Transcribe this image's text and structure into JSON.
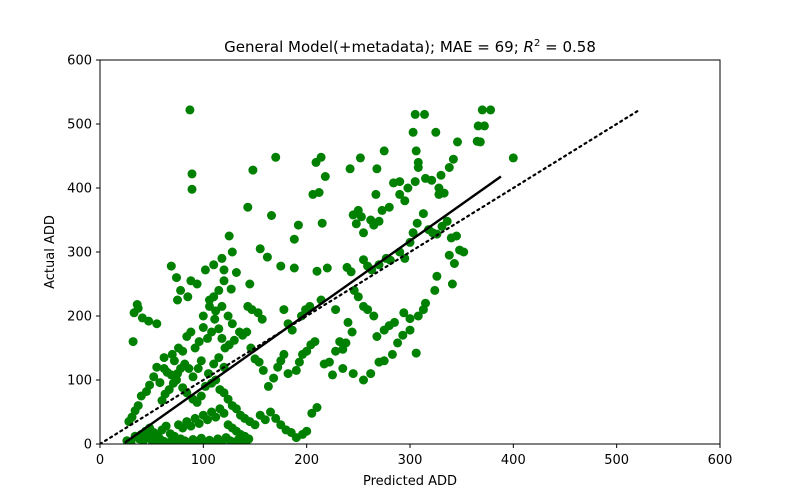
{
  "chart_data": {
    "type": "scatter",
    "title_main": "General Model(+metadata); MAE = 69; ",
    "title_r": "R",
    "title_sup": "2",
    "title_tail": " = 0.58",
    "xlabel": "Predicted ADD",
    "ylabel": "Actual ADD",
    "xlim": [
      0,
      600
    ],
    "ylim": [
      0,
      600
    ],
    "xticks": [
      "0",
      "100",
      "200",
      "300",
      "400",
      "500",
      "600"
    ],
    "yticks": [
      "0",
      "100",
      "200",
      "300",
      "400",
      "500",
      "600"
    ],
    "grid": false,
    "legend": "none",
    "point_color": "#008000",
    "fit_line": {
      "x": [
        24,
        388
      ],
      "y": [
        2,
        418
      ],
      "color": "#000000",
      "style": "solid"
    },
    "identity_line": {
      "x": [
        0,
        522
      ],
      "y": [
        0,
        522
      ],
      "color": "#000000",
      "style": "dotted"
    },
    "points": [
      [
        87,
        522
      ],
      [
        89,
        422
      ],
      [
        89,
        398
      ],
      [
        370,
        522
      ],
      [
        378,
        522
      ],
      [
        305,
        515
      ],
      [
        314,
        515
      ],
      [
        303,
        487
      ],
      [
        325,
        487
      ],
      [
        366,
        497
      ],
      [
        372,
        497
      ],
      [
        400,
        447
      ],
      [
        342,
        445
      ],
      [
        308,
        440
      ],
      [
        306,
        458
      ],
      [
        275,
        458
      ],
      [
        365,
        473
      ],
      [
        368,
        472
      ],
      [
        346,
        472
      ],
      [
        338,
        432
      ],
      [
        330,
        420
      ],
      [
        321,
        412
      ],
      [
        328,
        400
      ],
      [
        305,
        410
      ],
      [
        308,
        432
      ],
      [
        315,
        415
      ],
      [
        290,
        410
      ],
      [
        298,
        400
      ],
      [
        284,
        408
      ],
      [
        252,
        447
      ],
      [
        268,
        430
      ],
      [
        214,
        448
      ],
      [
        209,
        440
      ],
      [
        170,
        448
      ],
      [
        148,
        428
      ],
      [
        218,
        418
      ],
      [
        212,
        393
      ],
      [
        206,
        390
      ],
      [
        242,
        430
      ],
      [
        328,
        390
      ],
      [
        333,
        392
      ],
      [
        290,
        390
      ],
      [
        295,
        380
      ],
      [
        280,
        370
      ],
      [
        273,
        365
      ],
      [
        267,
        390
      ],
      [
        250,
        365
      ],
      [
        262,
        350
      ],
      [
        253,
        355
      ],
      [
        270,
        348
      ],
      [
        265,
        342
      ],
      [
        255,
        330
      ],
      [
        248,
        344
      ],
      [
        245,
        358
      ],
      [
        215,
        345
      ],
      [
        192,
        342
      ],
      [
        188,
        320
      ],
      [
        166,
        357
      ],
      [
        143,
        370
      ],
      [
        125,
        325
      ],
      [
        128,
        300
      ],
      [
        118,
        290
      ],
      [
        110,
        280
      ],
      [
        120,
        272
      ],
      [
        132,
        268
      ],
      [
        102,
        272
      ],
      [
        88,
        255
      ],
      [
        94,
        250
      ],
      [
        85,
        230
      ],
      [
        75,
        225
      ],
      [
        69,
        278
      ],
      [
        74,
        260
      ],
      [
        78,
        240
      ],
      [
        120,
        255
      ],
      [
        127,
        242
      ],
      [
        145,
        250
      ],
      [
        155,
        305
      ],
      [
        162,
        292
      ],
      [
        175,
        278
      ],
      [
        188,
        275
      ],
      [
        210,
        270
      ],
      [
        220,
        275
      ],
      [
        239,
        276
      ],
      [
        243,
        269
      ],
      [
        255,
        288
      ],
      [
        259,
        278
      ],
      [
        263,
        272
      ],
      [
        270,
        280
      ],
      [
        277,
        290
      ],
      [
        281,
        287
      ],
      [
        290,
        300
      ],
      [
        295,
        290
      ],
      [
        300,
        315
      ],
      [
        303,
        330
      ],
      [
        307,
        345
      ],
      [
        313,
        360
      ],
      [
        318,
        335
      ],
      [
        322,
        330
      ],
      [
        326,
        328
      ],
      [
        331,
        340
      ],
      [
        336,
        348
      ],
      [
        340,
        322
      ],
      [
        345,
        325
      ],
      [
        348,
        303
      ],
      [
        352,
        300
      ],
      [
        343,
        282
      ],
      [
        338,
        295
      ],
      [
        341,
        250
      ],
      [
        326,
        262
      ],
      [
        324,
        240
      ],
      [
        315,
        220
      ],
      [
        313,
        210
      ],
      [
        308,
        200
      ],
      [
        300,
        196
      ],
      [
        294,
        205
      ],
      [
        285,
        190
      ],
      [
        280,
        185
      ],
      [
        275,
        178
      ],
      [
        268,
        168
      ],
      [
        265,
        200
      ],
      [
        259,
        210
      ],
      [
        255,
        215
      ],
      [
        250,
        230
      ],
      [
        246,
        240
      ],
      [
        244,
        175
      ],
      [
        240,
        190
      ],
      [
        238,
        158
      ],
      [
        235,
        148
      ],
      [
        232,
        160
      ],
      [
        228,
        145
      ],
      [
        222,
        128
      ],
      [
        217,
        125
      ],
      [
        208,
        160
      ],
      [
        204,
        155
      ],
      [
        200,
        145
      ],
      [
        196,
        140
      ],
      [
        193,
        128
      ],
      [
        190,
        115
      ],
      [
        182,
        110
      ],
      [
        178,
        140
      ],
      [
        175,
        130
      ],
      [
        172,
        120
      ],
      [
        168,
        103
      ],
      [
        163,
        90
      ],
      [
        158,
        115
      ],
      [
        154,
        128
      ],
      [
        150,
        133
      ],
      [
        146,
        150
      ],
      [
        142,
        175
      ],
      [
        138,
        170
      ],
      [
        135,
        175
      ],
      [
        130,
        162
      ],
      [
        125,
        155
      ],
      [
        121,
        150
      ],
      [
        118,
        165
      ],
      [
        115,
        180
      ],
      [
        111,
        195
      ],
      [
        108,
        175
      ],
      [
        104,
        165
      ],
      [
        100,
        182
      ],
      [
        96,
        160
      ],
      [
        92,
        150
      ],
      [
        88,
        175
      ],
      [
        84,
        168
      ],
      [
        80,
        145
      ],
      [
        76,
        150
      ],
      [
        72,
        130
      ],
      [
        69,
        108
      ],
      [
        65,
        112
      ],
      [
        62,
        118
      ],
      [
        58,
        96
      ],
      [
        55,
        120
      ],
      [
        52,
        105
      ],
      [
        48,
        92
      ],
      [
        45,
        82
      ],
      [
        40,
        75
      ],
      [
        37,
        60
      ],
      [
        34,
        52
      ],
      [
        31,
        42
      ],
      [
        28,
        35
      ],
      [
        37,
        212
      ],
      [
        36,
        218
      ],
      [
        33,
        205
      ],
      [
        41,
        197
      ],
      [
        47,
        192
      ],
      [
        55,
        188
      ],
      [
        32,
        160
      ],
      [
        62,
        135
      ],
      [
        70,
        140
      ],
      [
        74,
        100
      ],
      [
        80,
        88
      ],
      [
        84,
        80
      ],
      [
        90,
        70
      ],
      [
        94,
        65
      ],
      [
        98,
        75
      ],
      [
        102,
        90
      ],
      [
        108,
        95
      ],
      [
        112,
        100
      ],
      [
        116,
        85
      ],
      [
        120,
        80
      ],
      [
        124,
        70
      ],
      [
        128,
        60
      ],
      [
        132,
        55
      ],
      [
        136,
        45
      ],
      [
        140,
        40
      ],
      [
        145,
        35
      ],
      [
        150,
        30
      ],
      [
        155,
        45
      ],
      [
        160,
        38
      ],
      [
        165,
        50
      ],
      [
        170,
        40
      ],
      [
        175,
        30
      ],
      [
        180,
        22
      ],
      [
        185,
        18
      ],
      [
        190,
        10
      ],
      [
        196,
        15
      ],
      [
        200,
        20
      ],
      [
        205,
        48
      ],
      [
        210,
        57
      ],
      [
        225,
        108
      ],
      [
        235,
        118
      ],
      [
        245,
        110
      ],
      [
        255,
        100
      ],
      [
        262,
        110
      ],
      [
        270,
        128
      ],
      [
        275,
        130
      ],
      [
        283,
        140
      ],
      [
        288,
        158
      ],
      [
        293,
        170
      ],
      [
        300,
        178
      ],
      [
        306,
        142
      ],
      [
        34,
        12
      ],
      [
        38,
        8
      ],
      [
        42,
        5
      ],
      [
        46,
        10
      ],
      [
        50,
        6
      ],
      [
        54,
        3
      ],
      [
        58,
        8
      ],
      [
        62,
        4
      ],
      [
        66,
        2
      ],
      [
        70,
        6
      ],
      [
        74,
        3
      ],
      [
        78,
        8
      ],
      [
        82,
        5
      ],
      [
        86,
        2
      ],
      [
        90,
        7
      ],
      [
        94,
        4
      ],
      [
        98,
        9
      ],
      [
        102,
        3
      ],
      [
        106,
        6
      ],
      [
        110,
        2
      ],
      [
        114,
        8
      ],
      [
        118,
        4
      ],
      [
        122,
        10
      ],
      [
        126,
        5
      ],
      [
        130,
        3
      ],
      [
        134,
        7
      ],
      [
        138,
        2
      ],
      [
        142,
        5
      ],
      [
        30,
        2
      ],
      [
        26,
        5
      ],
      [
        40,
        15
      ],
      [
        44,
        20
      ],
      [
        48,
        25
      ],
      [
        52,
        18
      ],
      [
        56,
        14
      ],
      [
        60,
        22
      ],
      [
        64,
        28
      ],
      [
        68,
        16
      ],
      [
        72,
        12
      ],
      [
        76,
        30
      ],
      [
        80,
        25
      ],
      [
        84,
        35
      ],
      [
        88,
        28
      ],
      [
        92,
        40
      ],
      [
        96,
        32
      ],
      [
        100,
        45
      ],
      [
        104,
        38
      ],
      [
        108,
        50
      ],
      [
        112,
        42
      ],
      [
        116,
        55
      ],
      [
        120,
        48
      ],
      [
        124,
        30
      ],
      [
        128,
        25
      ],
      [
        132,
        20
      ],
      [
        136,
        15
      ],
      [
        140,
        12
      ],
      [
        144,
        8
      ],
      [
        105,
        110
      ],
      [
        110,
        125
      ],
      [
        115,
        135
      ],
      [
        120,
        120
      ],
      [
        98,
        130
      ],
      [
        95,
        118
      ],
      [
        90,
        105
      ],
      [
        86,
        118
      ],
      [
        82,
        125
      ],
      [
        78,
        118
      ],
      [
        75,
        110
      ],
      [
        71,
        95
      ],
      [
        67,
        85
      ],
      [
        63,
        78
      ],
      [
        60,
        68
      ],
      [
        100,
        200
      ],
      [
        106,
        215
      ],
      [
        112,
        208
      ],
      [
        118,
        215
      ],
      [
        124,
        200
      ],
      [
        128,
        188
      ],
      [
        115,
        240
      ],
      [
        110,
        230
      ],
      [
        106,
        225
      ],
      [
        143,
        215
      ],
      [
        147,
        210
      ],
      [
        153,
        205
      ],
      [
        157,
        195
      ],
      [
        178,
        210
      ],
      [
        182,
        188
      ],
      [
        186,
        178
      ],
      [
        195,
        200
      ],
      [
        199,
        210
      ],
      [
        203,
        215
      ],
      [
        214,
        225
      ],
      [
        228,
        210
      ]
    ]
  }
}
